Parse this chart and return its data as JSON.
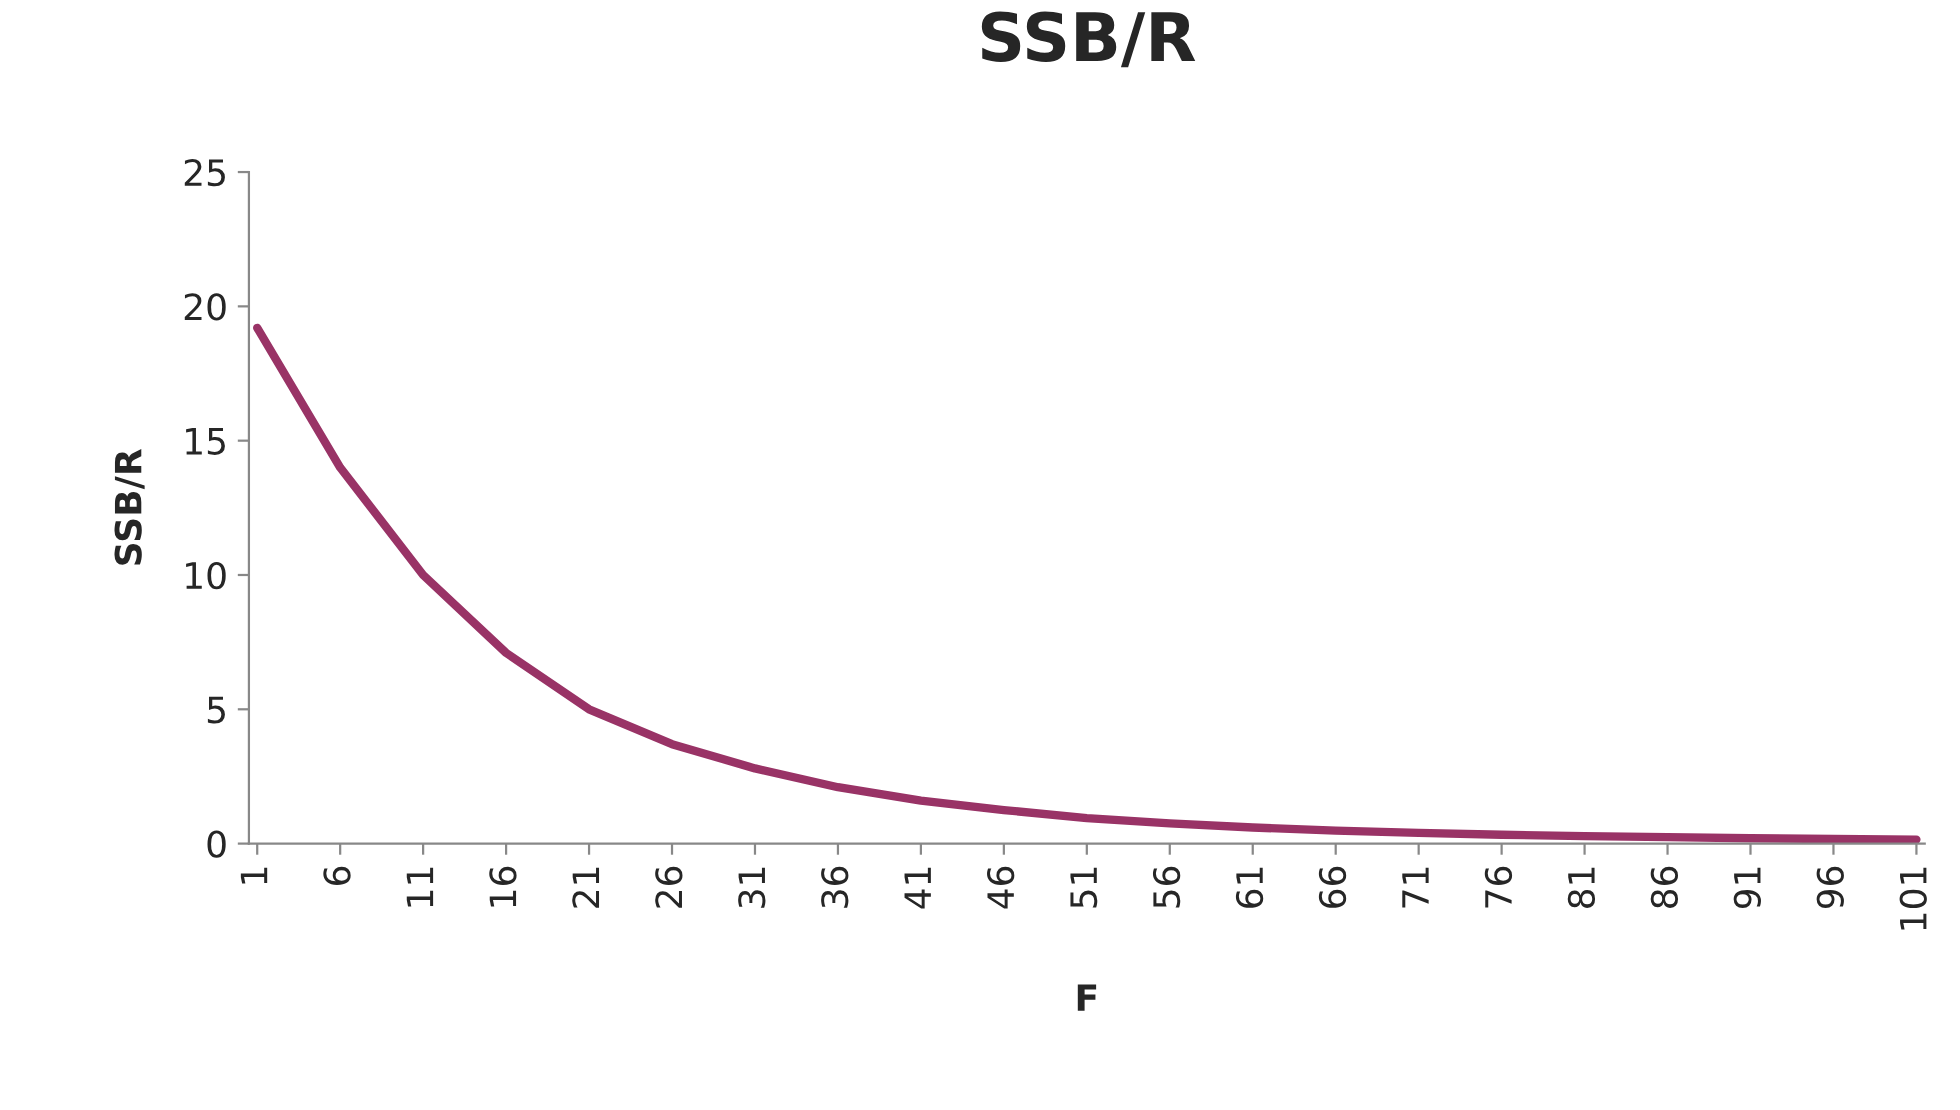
{
  "chart_data": {
    "type": "line",
    "title": "SSB/R",
    "xlabel": "F",
    "ylabel": "SSB/R",
    "x": [
      1,
      6,
      11,
      16,
      21,
      26,
      31,
      36,
      41,
      46,
      51,
      56,
      61,
      66,
      71,
      76,
      81,
      86,
      91,
      96,
      101
    ],
    "series": [
      {
        "color": "#993366",
        "values": [
          19.2,
          14.0,
          10.0,
          7.1,
          5.0,
          3.7,
          2.8,
          2.1,
          1.6,
          1.25,
          0.95,
          0.75,
          0.6,
          0.48,
          0.4,
          0.33,
          0.28,
          0.24,
          0.2,
          0.17,
          0.15
        ]
      }
    ],
    "xlim": [
      0.5,
      101.5
    ],
    "xticks": [
      1,
      6,
      11,
      16,
      21,
      26,
      31,
      36,
      41,
      46,
      51,
      56,
      61,
      66,
      71,
      76,
      81,
      86,
      91,
      96,
      101
    ],
    "ylim": [
      0,
      25
    ],
    "yticks": [
      0,
      5,
      10,
      15,
      20,
      25
    ],
    "grid": false,
    "legend": false,
    "marker": "none",
    "line_style": "solid"
  }
}
